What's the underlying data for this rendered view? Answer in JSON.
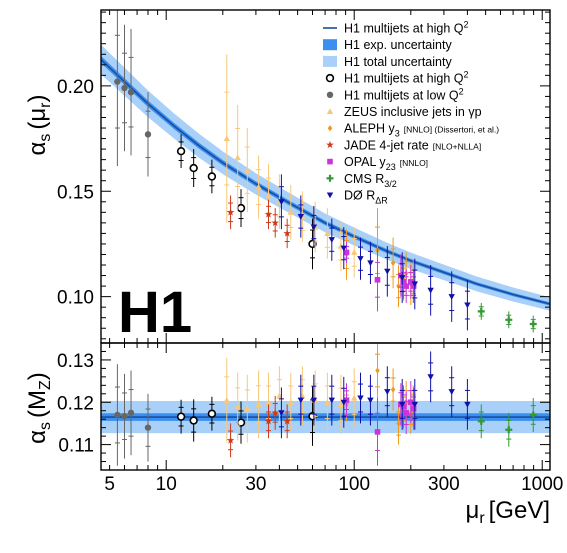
{
  "chart_data": [
    {
      "type": "scatter",
      "panel": "upper",
      "ylabel_main": "α",
      "ylabel_sub": "s",
      "ylabel_arg": "(μ",
      "ylabel_arg_sub": "r",
      "ylabel_close": ")",
      "yticks": [
        "0.10",
        "0.15",
        "0.20"
      ],
      "ylim": [
        0.078,
        0.236
      ],
      "xscale": "log",
      "xlim": [
        4.5,
        1100
      ],
      "logo": "H1",
      "legend_position": "top-right",
      "legend": [
        {
          "id": "fit",
          "label": "H1 multijets at high Q",
          "sup": "2",
          "color": "#1a4fa0"
        },
        {
          "id": "exp",
          "label": "H1 exp. uncertainty",
          "color": "#3a8ff0"
        },
        {
          "id": "tot",
          "label": "H1 total uncertainty",
          "color": "#a8d0f8"
        },
        {
          "id": "h1hi",
          "label": "H1 multijets at high Q",
          "sup": "2",
          "color": "#000000"
        },
        {
          "id": "h1lo",
          "label": "H1 multijets at low Q",
          "sup": "2",
          "color": "#666666"
        },
        {
          "id": "zeus",
          "label": "ZEUS inclusive jets in γp",
          "color": "#f8c878"
        },
        {
          "id": "aleph",
          "label": "ALEPH y",
          "sub": "3",
          "small": "[NNLO] (Dissertori, et al.)",
          "color": "#f09a1c"
        },
        {
          "id": "jade",
          "label": "JADE 4-jet rate",
          "small": "[NLO+NLLA]",
          "color": "#cc3a1a"
        },
        {
          "id": "opal",
          "label": "OPAL y",
          "sub": "23",
          "small": "[NNLO]",
          "color": "#cc33dd"
        },
        {
          "id": "cms",
          "label": "CMS R",
          "sub": "3/2",
          "color": "#339933"
        },
        {
          "id": "d0",
          "label": "DØ R",
          "sub": "ΔR",
          "color": "#1010aa"
        }
      ],
      "fit_curve": {
        "x": [
          4.5,
          6,
          8,
          11,
          15,
          20,
          30,
          45,
          70,
          100,
          150,
          200,
          300,
          450,
          700,
          1100
        ],
        "y": [
          0.2125,
          0.202,
          0.1915,
          0.181,
          0.1715,
          0.1635,
          0.1535,
          0.1445,
          0.135,
          0.1285,
          0.1215,
          0.117,
          0.1115,
          0.106,
          0.101,
          0.0965
        ]
      },
      "series": [
        {
          "name": "H1 multijets at high Q2",
          "marker": "open-circle",
          "color": "#000000",
          "x": [
            12,
            14,
            17.5,
            25,
            60
          ],
          "y": [
            0.169,
            0.161,
            0.157,
            0.142,
            0.125
          ],
          "yerr": [
            0.008,
            0.009,
            0.008,
            0.009,
            0.012
          ]
        },
        {
          "name": "H1 multijets at low Q2",
          "marker": "dot",
          "color": "#666666",
          "x": [
            5.5,
            6,
            6.5,
            8
          ],
          "y": [
            0.202,
            0.199,
            0.197,
            0.177
          ],
          "yerr": [
            0.04,
            0.03,
            0.03,
            0.02
          ]
        },
        {
          "name": "ZEUS inclusive jets in γp",
          "marker": "triangle",
          "color": "#f8c878",
          "x": [
            21,
            24,
            27,
            31,
            35,
            40,
            46,
            53,
            62,
            72,
            85,
            100
          ],
          "y": [
            0.175,
            0.166,
            0.16,
            0.152,
            0.148,
            0.145,
            0.14,
            0.138,
            0.133,
            0.13,
            0.124,
            0.121
          ],
          "yerr": [
            0.04,
            0.025,
            0.02,
            0.015,
            0.015,
            0.013,
            0.013,
            0.012,
            0.012,
            0.012,
            0.012,
            0.012
          ]
        },
        {
          "name": "ALEPH y3 [NNLO]",
          "marker": "diamond",
          "color": "#f09a1c",
          "x": [
            91,
            133,
            161,
            172,
            183,
            189,
            200,
            206
          ],
          "y": [
            0.12,
            0.122,
            0.116,
            0.105,
            0.108,
            0.111,
            0.106,
            0.107
          ],
          "yerr": [
            0.012,
            0.02,
            0.012,
            0.01,
            0.01,
            0.01,
            0.01,
            0.01
          ]
        },
        {
          "name": "JADE 4-jet rate [NLO+NLLA]",
          "marker": "star",
          "color": "#cc3a1a",
          "x": [
            22,
            35,
            38,
            44
          ],
          "y": [
            0.14,
            0.139,
            0.135,
            0.13
          ],
          "yerr": [
            0.008,
            0.007,
            0.007,
            0.007
          ]
        },
        {
          "name": "OPAL y23 [NNLO]",
          "marker": "square",
          "color": "#cc33dd",
          "x": [
            91,
            133,
            177,
            183,
            189,
            200,
            207
          ],
          "y": [
            0.121,
            0.108,
            0.11,
            0.107,
            0.105,
            0.107,
            0.105
          ],
          "yerr": [
            0.005,
            0.015,
            0.01,
            0.008,
            0.008,
            0.008,
            0.008
          ]
        },
        {
          "name": "CMS R3/2",
          "marker": "cross",
          "color": "#339933",
          "x": [
            474,
            664,
            896
          ],
          "y": [
            0.093,
            0.089,
            0.087
          ],
          "yerr": [
            0.004,
            0.004,
            0.004
          ]
        },
        {
          "name": "DØ RΔR",
          "marker": "down-triangle",
          "color": "#1010aa",
          "x": [
            41,
            52,
            61,
            76,
            88,
            108,
            122,
            150,
            180,
            210,
            255,
            330,
            400
          ],
          "y": [
            0.145,
            0.138,
            0.133,
            0.127,
            0.123,
            0.118,
            0.116,
            0.112,
            0.109,
            0.106,
            0.103,
            0.1,
            0.096
          ],
          "yerr": [
            0.013,
            0.01,
            0.01,
            0.01,
            0.01,
            0.01,
            0.01,
            0.012,
            0.012,
            0.012,
            0.012,
            0.012,
            0.012
          ]
        }
      ]
    },
    {
      "type": "scatter",
      "panel": "lower",
      "ylabel_main": "α",
      "ylabel_sub": "s",
      "ylabel_arg": "(M",
      "ylabel_arg_sub": "Z",
      "ylabel_close": ")",
      "yticks": [
        "0.11",
        "0.12",
        "0.13"
      ],
      "ylim": [
        0.104,
        0.134
      ],
      "xscale": "log",
      "xlim": [
        4.5,
        1100
      ],
      "xticks": [
        "5",
        "10",
        "30",
        "100",
        "300",
        "1000"
      ],
      "xtick_values": [
        5,
        10,
        30,
        100,
        300,
        1000
      ],
      "xlabel": "μ",
      "xlabel_sub": "r",
      "xlabel_unit": "[GeV]",
      "band_central": 0.1165,
      "band_exp": [
        0.1156,
        0.1174
      ],
      "band_tot": [
        0.1127,
        0.1203
      ],
      "series": [
        {
          "name": "H1 multijets at high Q2",
          "marker": "open-circle",
          "color": "#000000",
          "x": [
            12,
            14,
            17.5,
            25,
            60
          ],
          "y": [
            0.1166,
            0.1157,
            0.1173,
            0.1152,
            0.1167
          ],
          "yerr": [
            0.004,
            0.005,
            0.004,
            0.005,
            0.007
          ]
        },
        {
          "name": "H1 multijets at low Q2",
          "marker": "dot",
          "color": "#666666",
          "x": [
            5.5,
            6,
            6.5,
            8
          ],
          "y": [
            0.117,
            0.1167,
            0.1175,
            0.114
          ],
          "yerr": [
            0.012,
            0.01,
            0.01,
            0.008
          ]
        },
        {
          "name": "ZEUS inclusive jets in γp",
          "marker": "triangle",
          "color": "#f8c878",
          "x": [
            21,
            24,
            27,
            31,
            35,
            40,
            46,
            53,
            62,
            72,
            85,
            100
          ],
          "y": [
            0.1205,
            0.119,
            0.1185,
            0.1195,
            0.12,
            0.1215,
            0.12,
            0.1215,
            0.1205,
            0.12,
            0.1195,
            0.121
          ],
          "yerr": [
            0.01,
            0.008,
            0.008,
            0.008,
            0.007,
            0.007,
            0.007,
            0.007,
            0.007,
            0.007,
            0.007,
            0.007
          ]
        },
        {
          "name": "ALEPH y3 [NNLO]",
          "marker": "diamond",
          "color": "#f09a1c",
          "x": [
            91,
            133,
            161,
            172,
            183,
            189,
            200,
            206
          ],
          "y": [
            0.1195,
            0.1275,
            0.123,
            0.115,
            0.1185,
            0.12,
            0.1175,
            0.119
          ],
          "yerr": [
            0.004,
            0.007,
            0.005,
            0.005,
            0.005,
            0.005,
            0.005,
            0.005
          ]
        },
        {
          "name": "JADE 4-jet rate [NLO+NLLA]",
          "marker": "star",
          "color": "#cc3a1a",
          "x": [
            22,
            35,
            38,
            44
          ],
          "y": [
            0.111,
            0.1155,
            0.1175,
            0.1155
          ],
          "yerr": [
            0.004,
            0.004,
            0.004,
            0.004
          ]
        },
        {
          "name": "OPAL y23 [NNLO]",
          "marker": "square",
          "color": "#cc33dd",
          "x": [
            91,
            133,
            177,
            183,
            189,
            200,
            207
          ],
          "y": [
            0.1205,
            0.113,
            0.1195,
            0.119,
            0.1175,
            0.12,
            0.1185
          ],
          "yerr": [
            0.004,
            0.008,
            0.005,
            0.005,
            0.005,
            0.005,
            0.005
          ]
        },
        {
          "name": "CMS R3/2",
          "marker": "cross",
          "color": "#339933",
          "x": [
            474,
            664,
            896
          ],
          "y": [
            0.1155,
            0.1135,
            0.117
          ],
          "yerr": [
            0.004,
            0.004,
            0.004
          ]
        },
        {
          "name": "DØ RΔR",
          "marker": "down-triangle",
          "color": "#1010aa",
          "x": [
            41,
            52,
            61,
            76,
            88,
            108,
            122,
            150,
            180,
            210,
            255,
            330,
            400
          ],
          "y": [
            0.1175,
            0.1205,
            0.1205,
            0.1205,
            0.12,
            0.121,
            0.1205,
            0.1225,
            0.1195,
            0.1195,
            0.126,
            0.1225,
            0.1195
          ],
          "yerr": [
            0.006,
            0.006,
            0.006,
            0.006,
            0.006,
            0.006,
            0.006,
            0.006,
            0.006,
            0.006,
            0.006,
            0.006,
            0.006
          ]
        }
      ]
    }
  ]
}
